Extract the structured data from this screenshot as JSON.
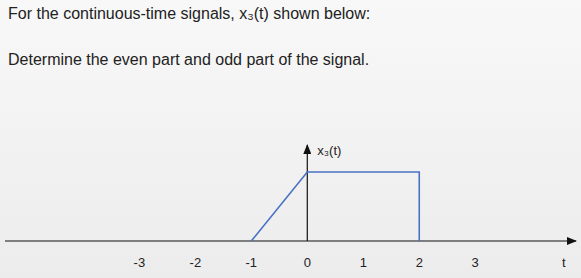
{
  "chart_data": {
    "type": "line",
    "title": "For the continuous-time signals, x₃(t) shown below:",
    "subtitle": "Determine the even part and odd part of the signal.",
    "x_label": "t",
    "y_label": "x₃(t)",
    "x": [
      -1,
      0,
      0,
      2,
      2
    ],
    "values": [
      0,
      0.97,
      0.97,
      0.97,
      0
    ],
    "color": "#4a72c4",
    "xlim": [
      -5.4,
      4.8
    ],
    "xticks": [
      -3,
      -2,
      -1,
      0,
      1,
      2,
      3
    ],
    "ylim": [
      0,
      1.35
    ],
    "tick_labels": "x"
  }
}
